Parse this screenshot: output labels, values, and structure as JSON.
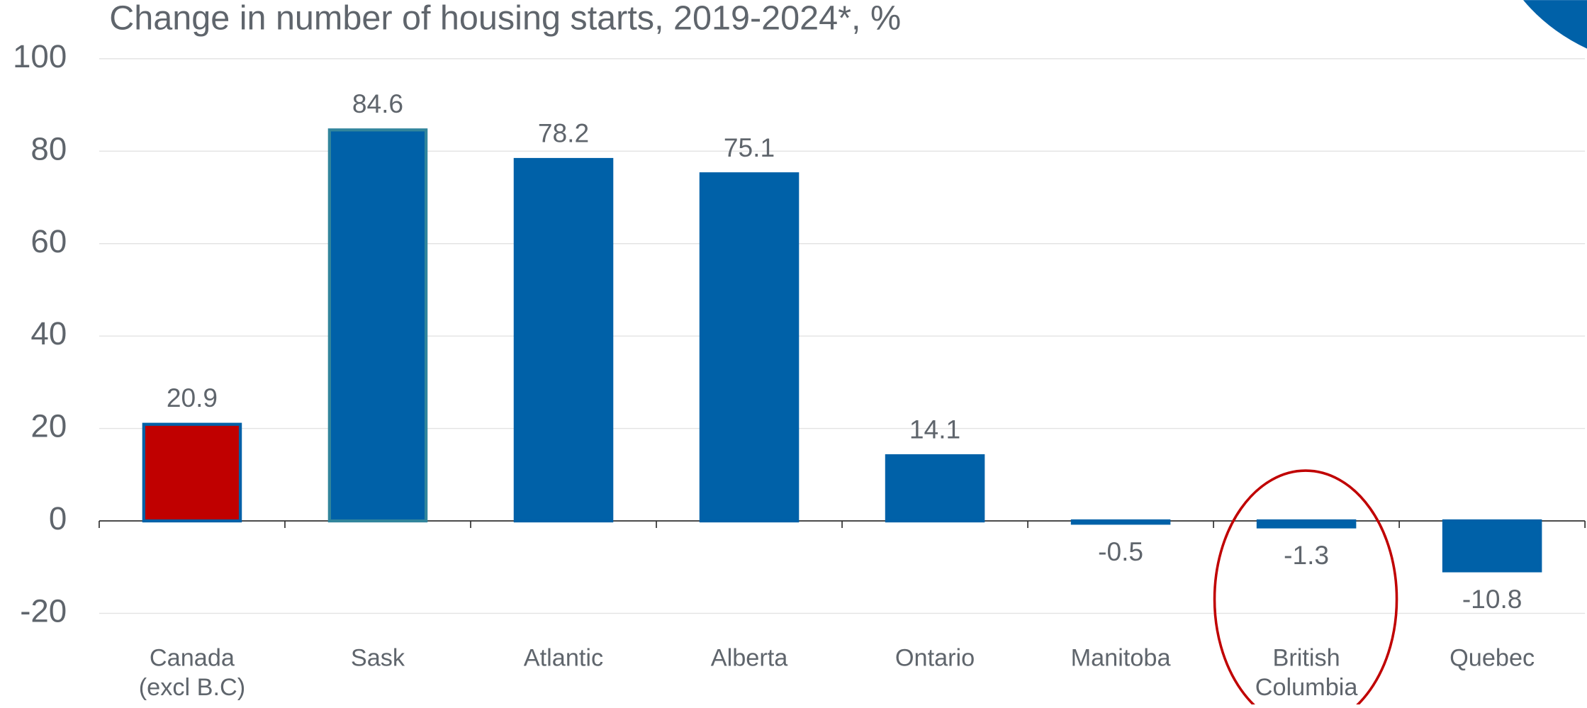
{
  "chart_data": {
    "type": "bar",
    "title": "Change in number of housing starts, 2019-2024*, %",
    "categories": [
      "Canada\n(excl B.C)",
      "Sask",
      "Atlantic",
      "Alberta",
      "Ontario",
      "Manitoba",
      "British\nColumbia",
      "Quebec"
    ],
    "values": [
      20.9,
      84.6,
      78.2,
      75.1,
      14.1,
      -0.5,
      -1.3,
      -10.8
    ],
    "colors": [
      "#c00000",
      "#0061a8",
      "#0061a8",
      "#0061a8",
      "#0061a8",
      "#0061a8",
      "#0061a8",
      "#0061a8"
    ],
    "edge_colors": [
      "#0061a8",
      "#31859c",
      "#0061a8",
      "#0061a8",
      "#0061a8",
      "#0061a8",
      "#0061a8",
      "#0061a8"
    ],
    "ylim": [
      -20,
      100
    ],
    "yticks": [
      -20,
      0,
      20,
      40,
      60,
      80,
      100
    ],
    "grid": true
  }
}
